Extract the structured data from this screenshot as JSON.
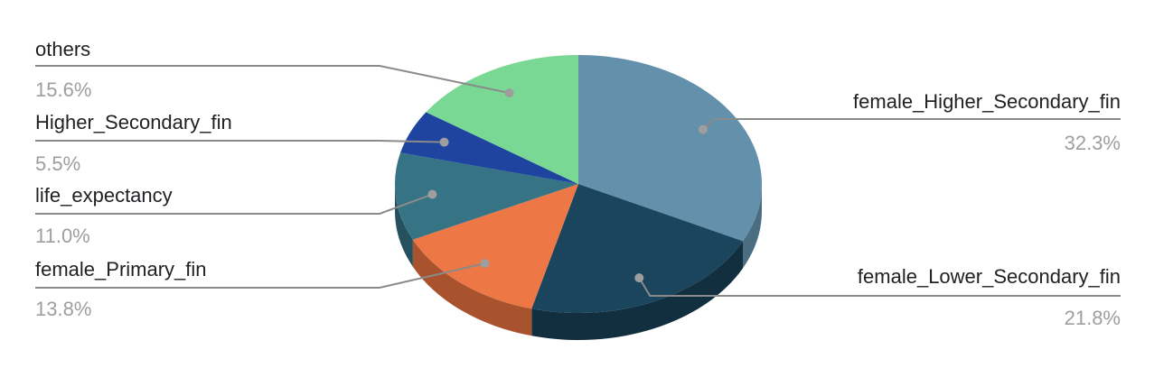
{
  "chart_data": {
    "type": "pie",
    "style": "3d",
    "title": "",
    "slices": [
      {
        "label": "female_Higher_Secondary_fin",
        "value": 32.3,
        "pct_text": "32.3%",
        "color": "#6390ab",
        "side_color": "#4a6d82"
      },
      {
        "label": "female_Lower_Secondary_fin",
        "value": 21.8,
        "pct_text": "21.8%",
        "color": "#1b455d",
        "side_color": "#122f40"
      },
      {
        "label": "female_Primary_fin",
        "value": 13.8,
        "pct_text": "13.8%",
        "color": "#ed7845",
        "side_color": "#a8532e"
      },
      {
        "label": "life_expectancy",
        "value": 11.0,
        "pct_text": "11.0%",
        "color": "#367385",
        "side_color": "#25505d"
      },
      {
        "label": "Higher_Secondary_fin",
        "value": 5.5,
        "pct_text": "5.5%",
        "color": "#1e44a0",
        "side_color": "#142f70"
      },
      {
        "label": "others",
        "value": 15.6,
        "pct_text": "15.6%",
        "color": "#79d893",
        "side_color": "#56a06a"
      }
    ],
    "start": "top",
    "direction": "clockwise",
    "legend": "none",
    "labels": "outside with leader lines"
  }
}
